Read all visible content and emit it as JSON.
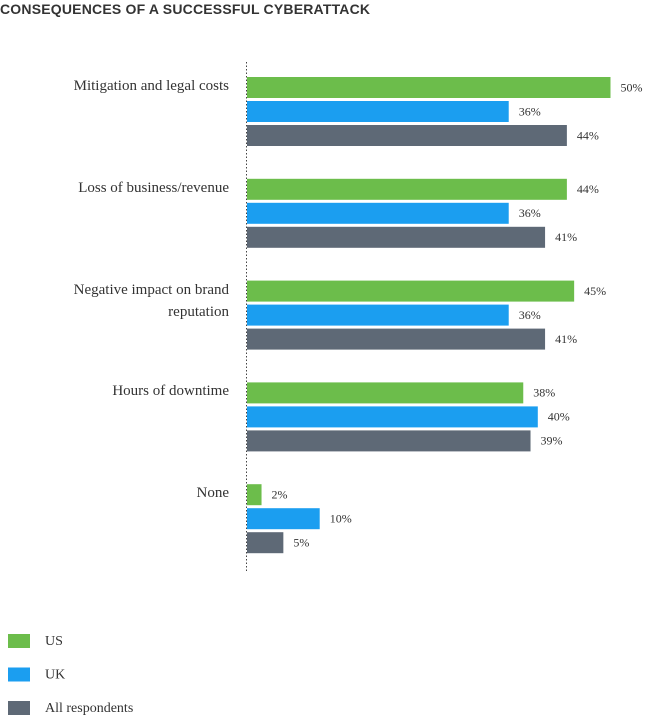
{
  "chart_data": {
    "type": "bar",
    "orientation": "horizontal",
    "title": "CONSEQUENCES OF A SUCCESSFUL CYBERATTACK",
    "categories": [
      "Mitigation and legal costs",
      "Loss of business/revenue",
      "Negative impact on brand reputation",
      "Hours of downtime",
      "None"
    ],
    "series": [
      {
        "name": "US",
        "color": "#6cbd4b",
        "values": [
          50,
          44,
          45,
          38,
          2
        ],
        "value_labels": [
          "50%",
          "44%",
          "45%",
          "38%",
          "2%"
        ]
      },
      {
        "name": "UK",
        "color": "#1b9ef0",
        "values": [
          36,
          36,
          36,
          40,
          10
        ],
        "value_labels": [
          "36%",
          "36%",
          "36%",
          "40%",
          "10%"
        ]
      },
      {
        "name": "All respondents",
        "color": "#5e6976",
        "values": [
          44,
          41,
          41,
          39,
          5
        ],
        "value_labels": [
          "44%",
          "41%",
          "41%",
          "39%",
          "5%"
        ]
      }
    ]
  }
}
